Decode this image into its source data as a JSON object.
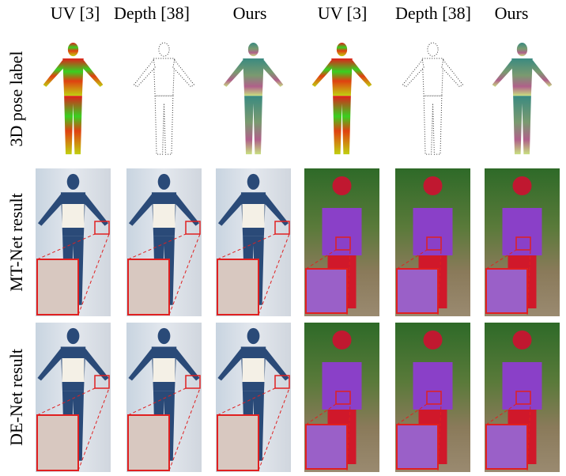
{
  "header": {
    "columns": [
      "UV [3]",
      "Depth [38]",
      "Ours",
      "UV [3]",
      "Depth [38]",
      "Ours"
    ]
  },
  "rows": [
    {
      "label": "3D pose label"
    },
    {
      "label": "MT-Net result"
    },
    {
      "label": "DE-Net result"
    }
  ]
}
